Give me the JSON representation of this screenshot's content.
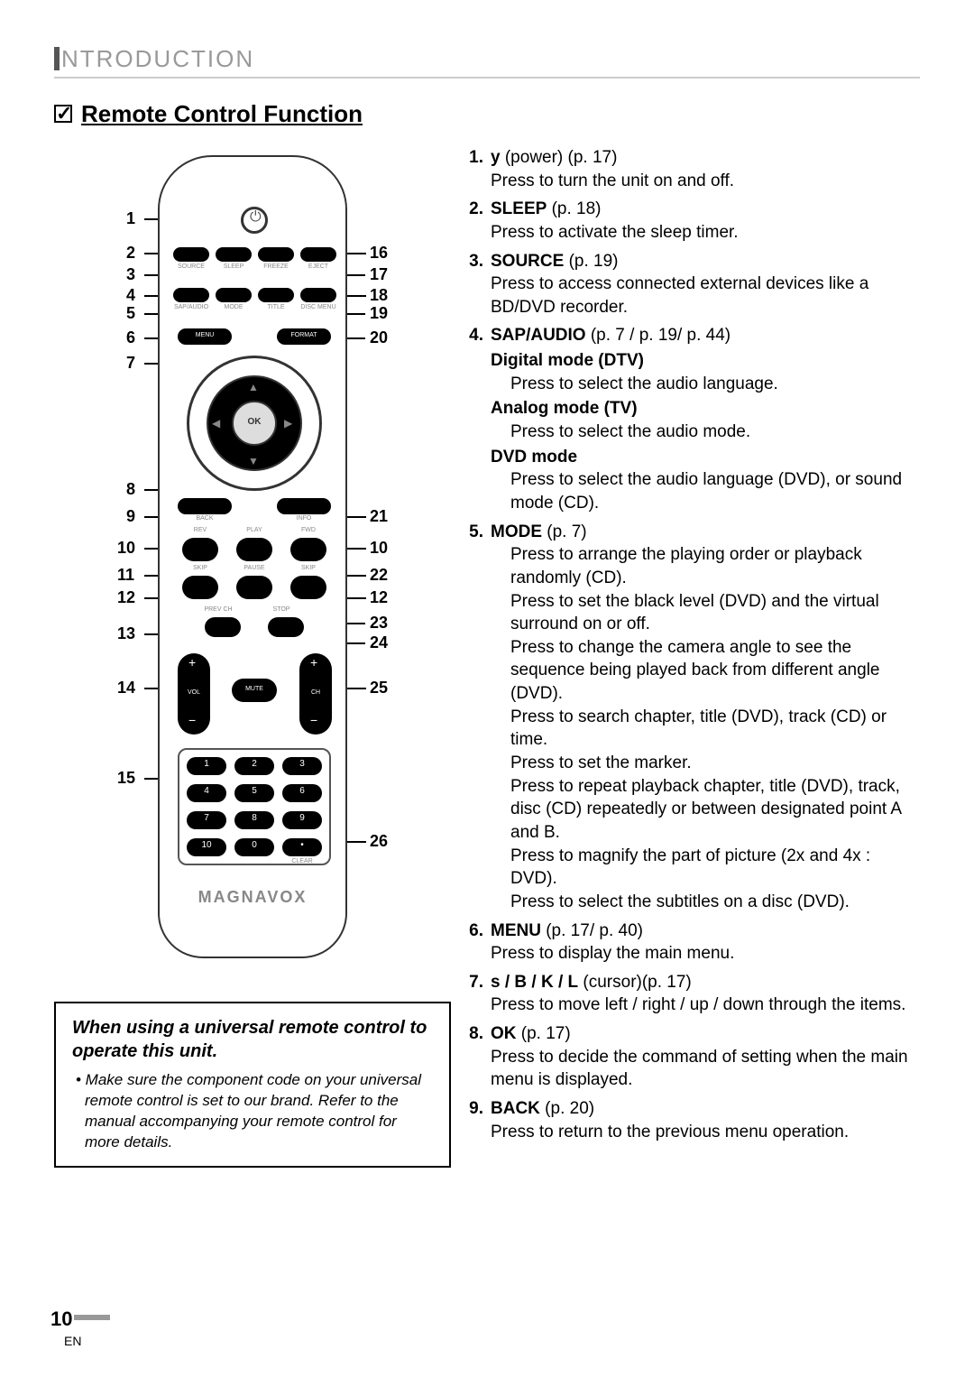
{
  "header": {
    "text": "NTRODUCTION"
  },
  "section": {
    "title": "Remote Control Function"
  },
  "remote": {
    "brand": "MAGNAVOX",
    "left_labels": [
      "1",
      "2",
      "3",
      "4",
      "5",
      "6",
      "7",
      "8",
      "9",
      "10",
      "11",
      "12",
      "13",
      "14",
      "15"
    ],
    "right_labels": [
      "16",
      "17",
      "18",
      "19",
      "20",
      "10",
      "22",
      "12",
      "23",
      "24",
      "25",
      "26",
      "21"
    ],
    "btn_labels": [
      "SOURCE",
      "SLEEP",
      "FREEZE",
      "EJECT",
      "SAP/AUDIO",
      "MODE",
      "TITLE",
      "DISC MENU",
      "MENU",
      "FORMAT",
      "OK",
      "BACK",
      "INFO",
      "REV",
      "PLAY",
      "FWD",
      "SKIP",
      "PAUSE",
      "SKIP",
      "PREV CH",
      "STOP",
      "VOL",
      "MUTE",
      "CH",
      "CLEAR"
    ]
  },
  "items": [
    {
      "num": "1.",
      "name": "y",
      "extra": " (power) (p. 17)",
      "lines": [
        "Press to turn the unit on and off."
      ]
    },
    {
      "num": "2.",
      "name": "SLEEP",
      "extra": " (p. 18)",
      "lines": [
        "Press to activate the sleep timer."
      ]
    },
    {
      "num": "3.",
      "name": "SOURCE",
      "extra": " (p. 19)",
      "lines": [
        "Press to access connected external devices like a BD/DVD recorder."
      ]
    },
    {
      "num": "4.",
      "name": "SAP/AUDIO",
      "extra": " (p. 7 / p. 19/ p. 44)",
      "sub": [
        {
          "label": "Digital mode (DTV)",
          "text": "Press to select the audio language."
        },
        {
          "label": "Analog mode (TV)",
          "text": "Press to select the audio mode."
        },
        {
          "label": "DVD mode",
          "text": "Press to select the audio language (DVD), or sound mode (CD)."
        }
      ]
    },
    {
      "num": "5.",
      "name": "MODE",
      "extra": " (p. 7)",
      "indent_lines": [
        "Press to arrange the playing order or playback randomly (CD).",
        "Press to set the black level (DVD) and the virtual surround on or off.",
        "Press to change the camera angle to see the sequence being played back from different angle (DVD).",
        "Press to search chapter, title (DVD), track (CD) or time.",
        "Press to set the marker.",
        "Press to repeat playback chapter, title (DVD), track, disc (CD) repeatedly or between designated point A and B.",
        "Press to magnify the part of picture (2x and 4x : DVD).",
        "Press to select the subtitles on a disc (DVD)."
      ]
    },
    {
      "num": "6.",
      "name": "MENU",
      "extra": " (p. 17/ p. 40)",
      "lines": [
        "Press to display the main menu."
      ]
    },
    {
      "num": "7.",
      "name": "s / B / K / L",
      "extra": "  (cursor)(p. 17)",
      "lines": [
        "Press to move left / right / up / down through the items."
      ]
    },
    {
      "num": "8.",
      "name": "OK",
      "extra": " (p. 17)",
      "lines": [
        "Press to decide the command of setting when the main menu is displayed."
      ]
    },
    {
      "num": "9.",
      "name": "BACK",
      "extra": " (p. 20)",
      "lines": [
        "Press to return to the previous menu operation."
      ]
    }
  ],
  "note": {
    "title": "When using a universal remote control to operate this unit.",
    "body": "• Make sure the component code on your universal remote control is set to our brand. Refer to the manual accompanying your remote control for more details."
  },
  "page": {
    "num": "10",
    "lang": "EN"
  }
}
